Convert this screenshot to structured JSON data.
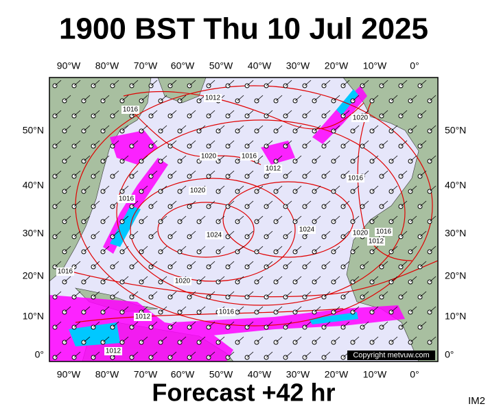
{
  "header": {
    "title": "1900 BST Thu 10 Jul 2025"
  },
  "map": {
    "top_lon_labels": [
      "90°W",
      "80°W",
      "70°W",
      "60°W",
      "50°W",
      "40°W",
      "30°W",
      "20°W",
      "10°W",
      "0°"
    ],
    "bottom_lon_labels": [
      "90°W",
      "80°W",
      "70°W",
      "60°W",
      "50°W",
      "40°W",
      "30°W",
      "20°W",
      "10°W",
      "0°"
    ],
    "left_lat_labels": [
      "50°N",
      "40°N",
      "30°N",
      "20°N",
      "10°N",
      "0°"
    ],
    "right_lat_labels": [
      "50°N",
      "40°N",
      "30°N",
      "20°N",
      "10°N",
      "0°"
    ],
    "isobar_labels": [
      "1016",
      "1012",
      "1020",
      "1016",
      "1012",
      "1020",
      "1016",
      "1024",
      "1020",
      "1016",
      "1012",
      "1024",
      "1020",
      "1016",
      "1016",
      "1012",
      "1012",
      "1016",
      "1020"
    ],
    "copyright": "Copyright metvuw.com"
  },
  "footer": {
    "forecast": "Forecast +42 hr",
    "image_id": "IM2"
  }
}
